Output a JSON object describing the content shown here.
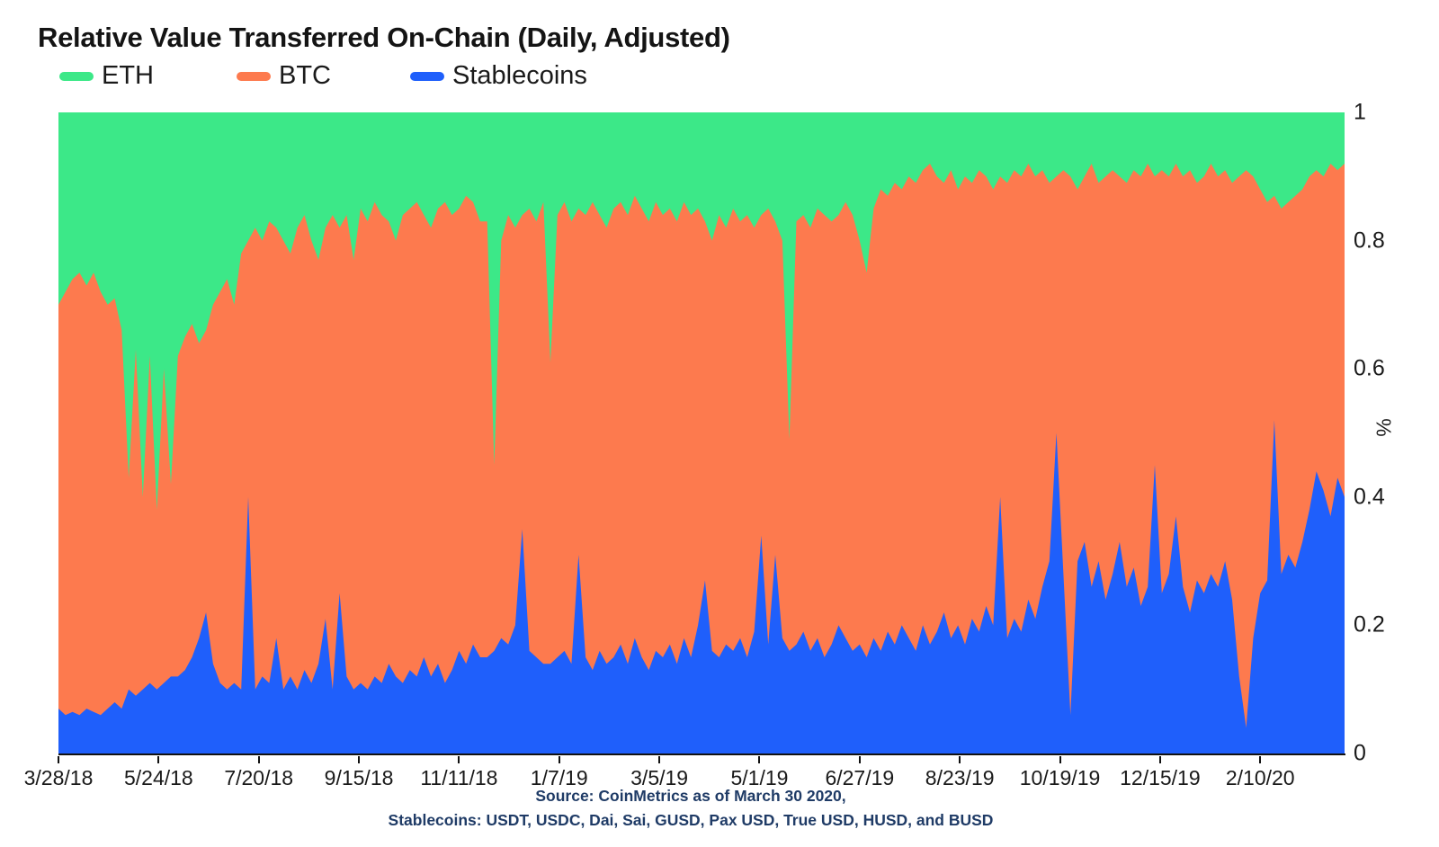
{
  "title": "Relative Value Transferred On-Chain (Daily, Adjusted)",
  "colors": {
    "eth": "#3ce888",
    "btc": "#fd7a4e",
    "stablecoins": "#1f5ffb",
    "axis": "#111111",
    "footer_text": "#1f3b66"
  },
  "legend": {
    "items": [
      {
        "label": "ETH",
        "color": "#3ce888"
      },
      {
        "label": "BTC",
        "color": "#fd7a4e"
      },
      {
        "label": "Stablecoins",
        "color": "#1f5ffb"
      }
    ]
  },
  "footer": {
    "line1": "Source: CoinMetrics as of March 30 2020,",
    "line2": "Stablecoins: USDT, USDC, Dai, Sai, GUSD, Pax USD, True USD, HUSD, and BUSD"
  },
  "chart_data": {
    "type": "area",
    "stacked": true,
    "title": "Relative Value Transferred On-Chain (Daily, Adjusted)",
    "ylabel": "%",
    "ylim": [
      0,
      1
    ],
    "grid": false,
    "legend_position": "top-left",
    "x_domain_days": [
      0,
      732
    ],
    "x_start_date": "3/28/18",
    "sample_interval_days": 4,
    "x_ticks": [
      {
        "day": 0,
        "label": "3/28/18"
      },
      {
        "day": 57,
        "label": "5/24/18"
      },
      {
        "day": 114,
        "label": "7/20/18"
      },
      {
        "day": 171,
        "label": "9/15/18"
      },
      {
        "day": 228,
        "label": "11/11/18"
      },
      {
        "day": 285,
        "label": "1/7/19"
      },
      {
        "day": 342,
        "label": "3/5/19"
      },
      {
        "day": 399,
        "label": "5/1/19"
      },
      {
        "day": 456,
        "label": "6/27/19"
      },
      {
        "day": 513,
        "label": "8/23/19"
      },
      {
        "day": 570,
        "label": "10/19/19"
      },
      {
        "day": 627,
        "label": "12/15/19"
      },
      {
        "day": 684,
        "label": "2/10/20"
      }
    ],
    "y_ticks": [
      {
        "v": 0,
        "label": "0"
      },
      {
        "v": 0.2,
        "label": "0.2"
      },
      {
        "v": 0.4,
        "label": "0.4"
      },
      {
        "v": 0.6,
        "label": "0.6"
      },
      {
        "v": 0.8,
        "label": "0.8"
      },
      {
        "v": 1,
        "label": "1"
      }
    ],
    "series": [
      {
        "name": "Stablecoins",
        "color": "#1f5ffb",
        "values": [
          0.07,
          0.06,
          0.065,
          0.06,
          0.07,
          0.065,
          0.06,
          0.07,
          0.08,
          0.07,
          0.1,
          0.09,
          0.1,
          0.11,
          0.1,
          0.11,
          0.12,
          0.12,
          0.13,
          0.15,
          0.18,
          0.22,
          0.14,
          0.11,
          0.1,
          0.11,
          0.1,
          0.4,
          0.1,
          0.12,
          0.11,
          0.18,
          0.1,
          0.12,
          0.1,
          0.13,
          0.11,
          0.14,
          0.21,
          0.1,
          0.25,
          0.12,
          0.1,
          0.11,
          0.1,
          0.12,
          0.11,
          0.14,
          0.12,
          0.11,
          0.13,
          0.12,
          0.15,
          0.12,
          0.14,
          0.11,
          0.13,
          0.16,
          0.14,
          0.17,
          0.15,
          0.15,
          0.16,
          0.18,
          0.17,
          0.2,
          0.35,
          0.16,
          0.15,
          0.14,
          0.14,
          0.15,
          0.16,
          0.14,
          0.31,
          0.15,
          0.13,
          0.16,
          0.14,
          0.15,
          0.17,
          0.14,
          0.18,
          0.15,
          0.13,
          0.16,
          0.15,
          0.17,
          0.14,
          0.18,
          0.15,
          0.2,
          0.27,
          0.16,
          0.15,
          0.17,
          0.16,
          0.18,
          0.15,
          0.19,
          0.34,
          0.17,
          0.31,
          0.18,
          0.16,
          0.17,
          0.19,
          0.16,
          0.18,
          0.15,
          0.17,
          0.2,
          0.18,
          0.16,
          0.17,
          0.15,
          0.18,
          0.16,
          0.19,
          0.17,
          0.2,
          0.18,
          0.16,
          0.2,
          0.17,
          0.19,
          0.22,
          0.18,
          0.2,
          0.17,
          0.21,
          0.19,
          0.23,
          0.2,
          0.4,
          0.18,
          0.21,
          0.19,
          0.24,
          0.21,
          0.26,
          0.3,
          0.5,
          0.28,
          0.06,
          0.3,
          0.33,
          0.26,
          0.3,
          0.24,
          0.28,
          0.33,
          0.26,
          0.29,
          0.23,
          0.26,
          0.45,
          0.25,
          0.28,
          0.37,
          0.26,
          0.22,
          0.27,
          0.25,
          0.28,
          0.26,
          0.3,
          0.24,
          0.12,
          0.04,
          0.18,
          0.25,
          0.27,
          0.52,
          0.28,
          0.31,
          0.29,
          0.33,
          0.38,
          0.44,
          0.41,
          0.37,
          0.43,
          0.4
        ]
      },
      {
        "name": "BTC",
        "color": "#fd7a4e",
        "values": [
          0.63,
          0.66,
          0.675,
          0.69,
          0.66,
          0.685,
          0.66,
          0.63,
          0.63,
          0.59,
          0.33,
          0.54,
          0.3,
          0.51,
          0.28,
          0.49,
          0.3,
          0.5,
          0.52,
          0.52,
          0.46,
          0.44,
          0.56,
          0.61,
          0.64,
          0.59,
          0.68,
          0.4,
          0.72,
          0.68,
          0.72,
          0.64,
          0.7,
          0.66,
          0.72,
          0.71,
          0.69,
          0.63,
          0.61,
          0.74,
          0.57,
          0.72,
          0.67,
          0.74,
          0.73,
          0.74,
          0.73,
          0.69,
          0.68,
          0.73,
          0.72,
          0.74,
          0.69,
          0.7,
          0.71,
          0.75,
          0.71,
          0.69,
          0.73,
          0.69,
          0.68,
          0.68,
          0.29,
          0.62,
          0.67,
          0.62,
          0.49,
          0.69,
          0.68,
          0.72,
          0.47,
          0.69,
          0.7,
          0.69,
          0.54,
          0.69,
          0.73,
          0.68,
          0.68,
          0.7,
          0.69,
          0.7,
          0.69,
          0.7,
          0.7,
          0.7,
          0.69,
          0.68,
          0.69,
          0.68,
          0.69,
          0.65,
          0.56,
          0.64,
          0.69,
          0.65,
          0.69,
          0.65,
          0.69,
          0.63,
          0.5,
          0.68,
          0.52,
          0.62,
          0.33,
          0.66,
          0.65,
          0.66,
          0.67,
          0.69,
          0.66,
          0.64,
          0.68,
          0.68,
          0.63,
          0.6,
          0.67,
          0.72,
          0.68,
          0.72,
          0.68,
          0.72,
          0.73,
          0.71,
          0.75,
          0.71,
          0.67,
          0.73,
          0.68,
          0.73,
          0.68,
          0.72,
          0.67,
          0.68,
          0.5,
          0.71,
          0.7,
          0.71,
          0.68,
          0.69,
          0.65,
          0.59,
          0.4,
          0.63,
          0.84,
          0.58,
          0.57,
          0.66,
          0.59,
          0.66,
          0.63,
          0.57,
          0.63,
          0.62,
          0.67,
          0.66,
          0.45,
          0.66,
          0.62,
          0.55,
          0.64,
          0.69,
          0.62,
          0.65,
          0.64,
          0.64,
          0.61,
          0.65,
          0.78,
          0.87,
          0.72,
          0.63,
          0.59,
          0.35,
          0.57,
          0.55,
          0.58,
          0.55,
          0.52,
          0.47,
          0.49,
          0.55,
          0.48,
          0.52
        ]
      },
      {
        "name": "ETH",
        "color": "#3ce888",
        "values": [
          0.3,
          0.28,
          0.26,
          0.25,
          0.27,
          0.25,
          0.28,
          0.3,
          0.29,
          0.34,
          0.57,
          0.37,
          0.6,
          0.38,
          0.62,
          0.4,
          0.58,
          0.38,
          0.35,
          0.33,
          0.36,
          0.34,
          0.3,
          0.28,
          0.26,
          0.3,
          0.22,
          0.2,
          0.18,
          0.2,
          0.17,
          0.18,
          0.2,
          0.22,
          0.18,
          0.16,
          0.2,
          0.23,
          0.18,
          0.16,
          0.18,
          0.16,
          0.23,
          0.15,
          0.17,
          0.14,
          0.16,
          0.17,
          0.2,
          0.16,
          0.15,
          0.14,
          0.16,
          0.18,
          0.15,
          0.14,
          0.16,
          0.15,
          0.13,
          0.14,
          0.17,
          0.17,
          0.55,
          0.2,
          0.16,
          0.18,
          0.16,
          0.15,
          0.17,
          0.14,
          0.39,
          0.16,
          0.14,
          0.17,
          0.15,
          0.16,
          0.14,
          0.16,
          0.18,
          0.15,
          0.14,
          0.16,
          0.13,
          0.15,
          0.17,
          0.14,
          0.16,
          0.15,
          0.17,
          0.14,
          0.16,
          0.15,
          0.17,
          0.2,
          0.16,
          0.18,
          0.15,
          0.17,
          0.16,
          0.18,
          0.16,
          0.15,
          0.17,
          0.2,
          0.51,
          0.17,
          0.16,
          0.18,
          0.15,
          0.16,
          0.17,
          0.16,
          0.14,
          0.16,
          0.2,
          0.25,
          0.15,
          0.12,
          0.13,
          0.11,
          0.12,
          0.1,
          0.11,
          0.09,
          0.08,
          0.1,
          0.11,
          0.09,
          0.12,
          0.1,
          0.11,
          0.09,
          0.1,
          0.12,
          0.1,
          0.11,
          0.09,
          0.1,
          0.08,
          0.1,
          0.09,
          0.11,
          0.1,
          0.09,
          0.1,
          0.12,
          0.1,
          0.08,
          0.11,
          0.1,
          0.09,
          0.1,
          0.11,
          0.09,
          0.1,
          0.08,
          0.1,
          0.09,
          0.1,
          0.08,
          0.1,
          0.09,
          0.11,
          0.1,
          0.08,
          0.1,
          0.09,
          0.11,
          0.1,
          0.09,
          0.1,
          0.12,
          0.14,
          0.13,
          0.15,
          0.14,
          0.13,
          0.12,
          0.1,
          0.09,
          0.1,
          0.08,
          0.09,
          0.08
        ]
      }
    ]
  }
}
